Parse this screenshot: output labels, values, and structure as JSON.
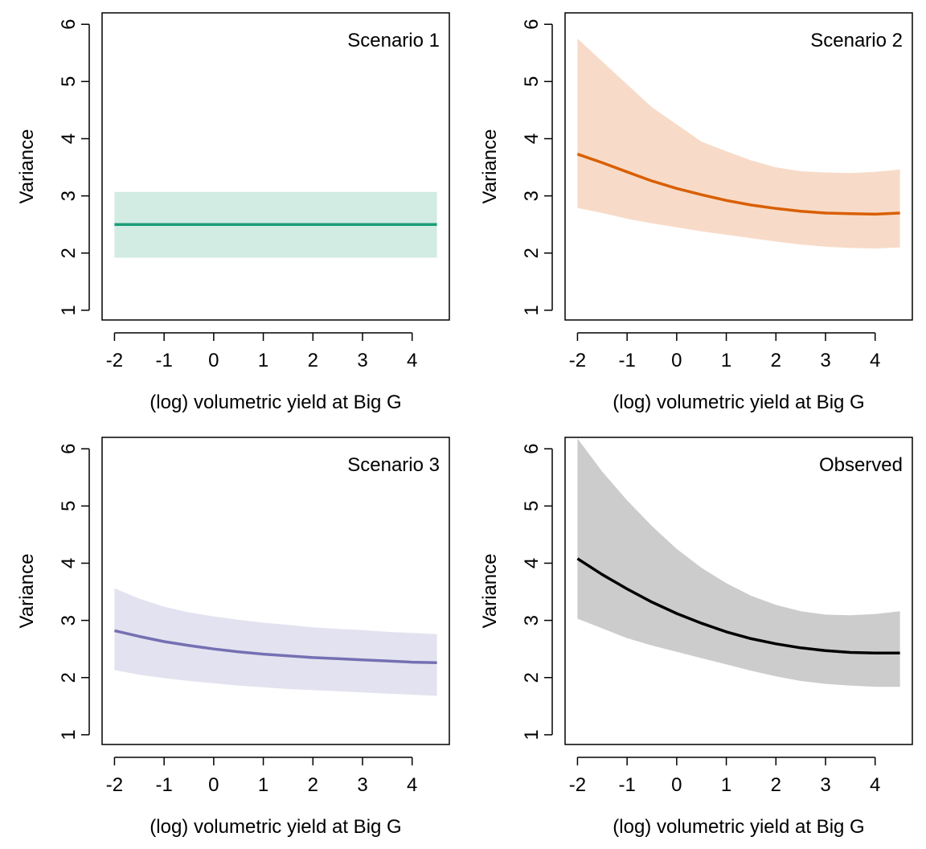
{
  "chart_data": [
    {
      "type": "line",
      "annotation": "Scenario 1",
      "xlabel": "(log) volumetric yield at Big G",
      "ylabel": "Variance",
      "xlim": [
        -2.25,
        4.75
      ],
      "ylim": [
        0.83,
        6.2
      ],
      "xticks": [
        -2,
        -1,
        0,
        1,
        2,
        3,
        4
      ],
      "yticks": [
        1,
        2,
        3,
        4,
        5,
        6
      ],
      "line_color": "#1b9e77",
      "band_color": "#d2ebe3",
      "x": [
        -2.0,
        -1.0,
        0.0,
        1.0,
        2.0,
        3.0,
        4.0,
        4.5
      ],
      "y": [
        2.5,
        2.5,
        2.5,
        2.5,
        2.5,
        2.5,
        2.5,
        2.5
      ],
      "lower": [
        1.92,
        1.92,
        1.92,
        1.92,
        1.92,
        1.92,
        1.92,
        1.92
      ],
      "upper": [
        3.07,
        3.07,
        3.07,
        3.07,
        3.07,
        3.07,
        3.07,
        3.07
      ]
    },
    {
      "type": "line",
      "annotation": "Scenario 2",
      "xlabel": "(log) volumetric yield at Big G",
      "ylabel": "Variance",
      "xlim": [
        -2.25,
        4.75
      ],
      "ylim": [
        0.83,
        6.2
      ],
      "xticks": [
        -2,
        -1,
        0,
        1,
        2,
        3,
        4
      ],
      "yticks": [
        1,
        2,
        3,
        4,
        5,
        6
      ],
      "line_color": "#d95f02",
      "band_color": "#f7dbc8",
      "x": [
        -2.0,
        -1.5,
        -1.0,
        -0.5,
        0.0,
        0.5,
        1.0,
        1.5,
        2.0,
        2.5,
        3.0,
        3.5,
        4.0,
        4.5
      ],
      "y": [
        3.73,
        3.58,
        3.42,
        3.26,
        3.13,
        3.02,
        2.92,
        2.84,
        2.78,
        2.73,
        2.7,
        2.69,
        2.68,
        2.7
      ],
      "lower": [
        2.79,
        2.7,
        2.6,
        2.52,
        2.45,
        2.38,
        2.32,
        2.26,
        2.2,
        2.15,
        2.11,
        2.09,
        2.08,
        2.1
      ],
      "upper": [
        5.75,
        5.35,
        4.95,
        4.55,
        4.25,
        3.95,
        3.78,
        3.62,
        3.5,
        3.43,
        3.41,
        3.4,
        3.42,
        3.46
      ]
    },
    {
      "type": "line",
      "annotation": "Scenario 3",
      "xlabel": "(log) volumetric yield at Big G",
      "ylabel": "Variance",
      "xlim": [
        -2.25,
        4.75
      ],
      "ylim": [
        0.83,
        6.2
      ],
      "xticks": [
        -2,
        -1,
        0,
        1,
        2,
        3,
        4
      ],
      "yticks": [
        1,
        2,
        3,
        4,
        5,
        6
      ],
      "line_color": "#7570b3",
      "band_color": "#e3e2f0",
      "x": [
        -2.0,
        -1.5,
        -1.0,
        -0.5,
        0.0,
        0.5,
        1.0,
        1.5,
        2.0,
        2.5,
        3.0,
        3.5,
        4.0,
        4.5
      ],
      "y": [
        2.82,
        2.72,
        2.63,
        2.56,
        2.5,
        2.45,
        2.41,
        2.38,
        2.35,
        2.33,
        2.31,
        2.29,
        2.27,
        2.26
      ],
      "lower": [
        2.13,
        2.05,
        1.99,
        1.94,
        1.9,
        1.86,
        1.83,
        1.8,
        1.78,
        1.76,
        1.74,
        1.72,
        1.7,
        1.68
      ],
      "upper": [
        3.56,
        3.38,
        3.24,
        3.14,
        3.07,
        3.01,
        2.96,
        2.92,
        2.88,
        2.85,
        2.83,
        2.8,
        2.78,
        2.76
      ]
    },
    {
      "type": "line",
      "annotation": "Observed",
      "xlabel": "(log) volumetric yield at Big G",
      "ylabel": "Variance",
      "xlim": [
        -2.25,
        4.75
      ],
      "ylim": [
        0.83,
        6.2
      ],
      "xticks": [
        -2,
        -1,
        0,
        1,
        2,
        3,
        4
      ],
      "yticks": [
        1,
        2,
        3,
        4,
        5,
        6
      ],
      "line_color": "#000000",
      "band_color": "#cccccc",
      "x": [
        -2.0,
        -1.5,
        -1.0,
        -0.5,
        0.0,
        0.5,
        1.0,
        1.5,
        2.0,
        2.5,
        3.0,
        3.5,
        4.0,
        4.5
      ],
      "y": [
        4.08,
        3.8,
        3.55,
        3.32,
        3.12,
        2.95,
        2.8,
        2.68,
        2.59,
        2.52,
        2.47,
        2.44,
        2.43,
        2.43
      ],
      "lower": [
        3.03,
        2.86,
        2.69,
        2.56,
        2.45,
        2.34,
        2.23,
        2.12,
        2.02,
        1.94,
        1.89,
        1.86,
        1.84,
        1.84
      ],
      "upper": [
        6.18,
        5.6,
        5.1,
        4.65,
        4.25,
        3.92,
        3.65,
        3.43,
        3.27,
        3.16,
        3.1,
        3.09,
        3.11,
        3.16
      ]
    }
  ]
}
